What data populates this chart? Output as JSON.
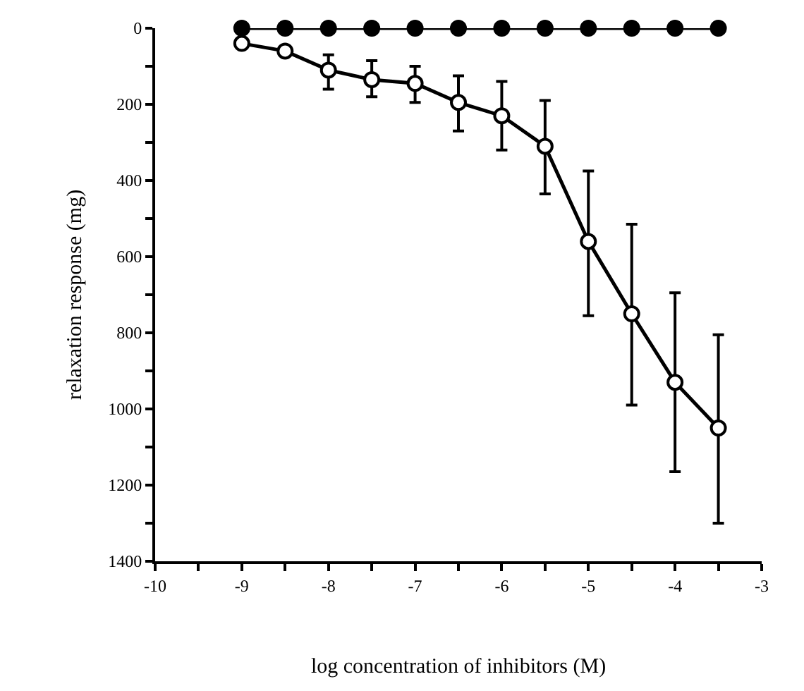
{
  "chart_data": {
    "type": "line",
    "xlabel": "log concentration of inhibitors (M)",
    "ylabel": "relaxation response (mg)",
    "x": [
      -9,
      -8.5,
      -8,
      -7.5,
      -7,
      -6.5,
      -6,
      -5.5,
      -5,
      -4.5,
      -4,
      -3.5
    ],
    "series": [
      {
        "color": "#000000",
        "marker": "circle",
        "values": [
          0,
          0,
          0,
          0,
          0,
          0,
          0,
          0,
          0,
          0,
          0,
          0
        ]
      },
      {
        "color": "#000000",
        "marker": "circle",
        "values": [
          40,
          60,
          110,
          135,
          145,
          195,
          230,
          310,
          560,
          750,
          930,
          1050
        ],
        "errors": [
          null,
          null,
          [
            70,
            160
          ],
          [
            85,
            180
          ],
          [
            100,
            195
          ],
          [
            125,
            270
          ],
          [
            140,
            320
          ],
          [
            190,
            435
          ],
          [
            375,
            755
          ],
          [
            515,
            990
          ],
          [
            695,
            1165
          ],
          [
            805,
            1300
          ]
        ]
      }
    ],
    "xlim": [
      -10,
      -3
    ],
    "xticks": [
      -10,
      {
        "value": -9.5,
        "label": null
      },
      -9,
      {
        "value": -8.5,
        "label": null
      },
      -8,
      {
        "value": -7.5,
        "label": null
      },
      -7,
      {
        "value": -6.5,
        "label": null
      },
      -6,
      {
        "value": -5.5,
        "label": null
      },
      -5,
      {
        "value": -4.5,
        "label": null
      },
      -4,
      {
        "value": -3.5,
        "label": null
      },
      -3
    ],
    "ylim": [
      1400,
      0
    ],
    "yticks": [
      0,
      {
        "value": 100,
        "label": null
      },
      200,
      {
        "value": 300,
        "label": null
      },
      400,
      {
        "value": 500,
        "label": null
      },
      600,
      {
        "value": 700,
        "label": null
      },
      800,
      {
        "value": 900,
        "label": null
      },
      1000,
      {
        "value": 1100,
        "label": null
      },
      1200,
      {
        "value": 1300,
        "label": null
      },
      1400
    ],
    "line_style": "solid"
  }
}
